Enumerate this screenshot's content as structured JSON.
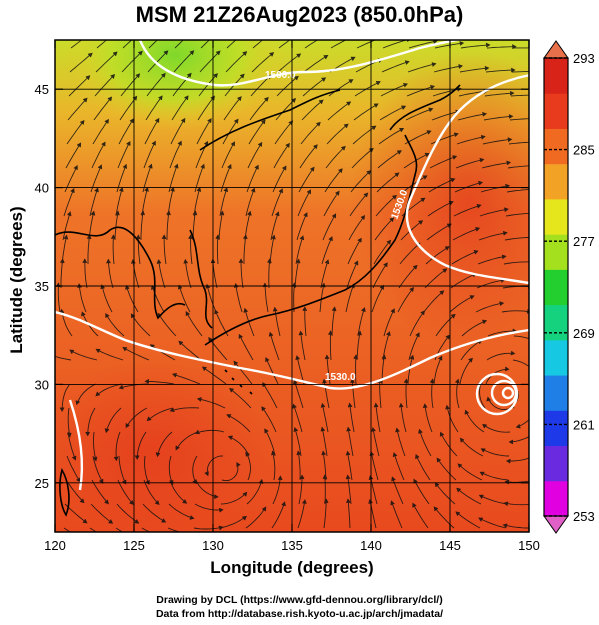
{
  "title": "MSM 21Z26Aug2023 (850.0hPa)",
  "xlabel": "Longitude (degrees)",
  "ylabel": "Latitude  (degrees)",
  "credit_line1": "Drawing by DCL (https://www.gfd-dennou.org/library/dcl/)",
  "credit_line2": "Data from http://database.rish.kyoto-u.ac.jp/arch/jmadata/",
  "map": {
    "lon_range": [
      120,
      150
    ],
    "lat_range": [
      22.5,
      47.5
    ],
    "lon_ticks": [
      120,
      125,
      130,
      135,
      140,
      145,
      150
    ],
    "lat_ticks": [
      25,
      30,
      35,
      40,
      45
    ],
    "contour_labels": [
      "1500.0",
      "1500.0",
      "1530.0",
      "1530.0"
    ]
  },
  "colorbar": {
    "min": 253,
    "max": 293,
    "ticks": [
      253,
      261,
      269,
      277,
      285,
      293
    ],
    "colors": [
      "#e000e0",
      "#6a2be0",
      "#1e3ae8",
      "#1f7fe6",
      "#16c8e2",
      "#14d27e",
      "#22cf2e",
      "#a4e01e",
      "#e6e61c",
      "#f2a224",
      "#f06a22",
      "#e83a1c",
      "#d82418"
    ]
  }
}
